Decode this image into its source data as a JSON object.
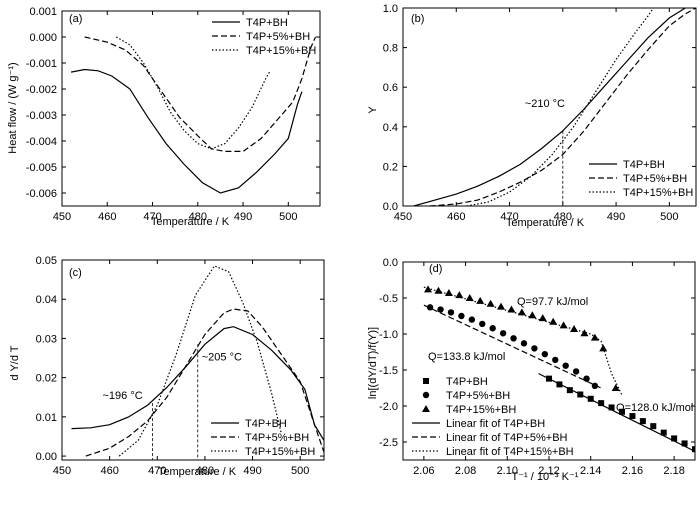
{
  "chart_data": [
    {
      "panel": "(a)",
      "type": "line",
      "xlabel": "Temperature / K",
      "ylabel": "Heat flow / (W g⁻¹)",
      "xlim": [
        450,
        507
      ],
      "ylim": [
        -0.0065,
        0.001
      ],
      "xticks": [
        450,
        460,
        470,
        480,
        490,
        500
      ],
      "yticks": [
        0.001,
        0.0,
        -0.001,
        -0.002,
        -0.003,
        -0.004,
        -0.005,
        -0.006
      ],
      "ytick_labels": [
        "0.001",
        "0.000",
        "-0.001",
        "-0.002",
        "-0.003",
        "-0.004",
        "-0.005",
        "-0.006"
      ],
      "legend_position": "top-right",
      "series": [
        {
          "name": "T4P+BH",
          "style": "solid",
          "points": [
            [
              452,
              -0.00135
            ],
            [
              455,
              -0.00125
            ],
            [
              458,
              -0.0013
            ],
            [
              461,
              -0.0015
            ],
            [
              465,
              -0.002
            ],
            [
              469,
              -0.0031
            ],
            [
              473,
              -0.0041
            ],
            [
              477,
              -0.0049
            ],
            [
              481,
              -0.0056
            ],
            [
              485,
              -0.006
            ],
            [
              489,
              -0.0058
            ],
            [
              493,
              -0.0052
            ],
            [
              497,
              -0.0045
            ],
            [
              500,
              -0.0039
            ],
            [
              502,
              -0.0026
            ],
            [
              503,
              -0.0021
            ]
          ]
        },
        {
          "name": "T4P+5%+BH",
          "style": "dashed",
          "points": [
            [
              455,
              0.0
            ],
            [
              460,
              -0.0002
            ],
            [
              464,
              -0.0005
            ],
            [
              468,
              -0.0011
            ],
            [
              472,
              -0.0021
            ],
            [
              476,
              -0.0031
            ],
            [
              480,
              -0.0038
            ],
            [
              483,
              -0.0043
            ],
            [
              486,
              -0.0044
            ],
            [
              490,
              -0.0044
            ],
            [
              494,
              -0.0039
            ],
            [
              498,
              -0.0031
            ],
            [
              501,
              -0.0025
            ],
            [
              503,
              -0.0016
            ],
            [
              505,
              -0.0004
            ],
            [
              506,
              0.0
            ]
          ]
        },
        {
          "name": "T4P+15%+BH",
          "style": "dotted",
          "points": [
            [
              462,
              0.0
            ],
            [
              465,
              -0.0003
            ],
            [
              468,
              -0.001
            ],
            [
              471,
              -0.0019
            ],
            [
              474,
              -0.0029
            ],
            [
              477,
              -0.0036
            ],
            [
              480,
              -0.0041
            ],
            [
              483,
              -0.0043
            ],
            [
              486,
              -0.0041
            ],
            [
              489,
              -0.0035
            ],
            [
              492,
              -0.0027
            ],
            [
              495,
              -0.0016
            ],
            [
              496,
              -0.0013
            ]
          ]
        }
      ]
    },
    {
      "panel": "(b)",
      "type": "line",
      "xlabel": "Temperature / K",
      "ylabel": "Y",
      "xlim": [
        450,
        505
      ],
      "ylim": [
        0,
        1.0
      ],
      "xticks": [
        450,
        460,
        470,
        480,
        490,
        500
      ],
      "yticks": [
        0.0,
        0.2,
        0.4,
        0.6,
        0.8,
        1.0
      ],
      "ytick_labels": [
        "0.0",
        "0.2",
        "0.4",
        "0.6",
        "0.8",
        "1.0"
      ],
      "legend_position": "bottom-right",
      "annotations": [
        {
          "text": "~210 °C",
          "x": 480
        }
      ],
      "series": [
        {
          "name": "T4P+BH",
          "style": "solid",
          "points": [
            [
              452,
              0.0
            ],
            [
              456,
              0.03
            ],
            [
              460,
              0.06
            ],
            [
              464,
              0.1
            ],
            [
              468,
              0.15
            ],
            [
              472,
              0.21
            ],
            [
              476,
              0.29
            ],
            [
              480,
              0.38
            ],
            [
              484,
              0.49
            ],
            [
              488,
              0.61
            ],
            [
              492,
              0.73
            ],
            [
              496,
              0.85
            ],
            [
              500,
              0.95
            ],
            [
              503,
              1.0
            ]
          ]
        },
        {
          "name": "T4P+5%+BH",
          "style": "dashed",
          "points": [
            [
              455,
              0.0
            ],
            [
              460,
              0.01
            ],
            [
              464,
              0.03
            ],
            [
              468,
              0.07
            ],
            [
              472,
              0.12
            ],
            [
              476,
              0.18
            ],
            [
              480,
              0.26
            ],
            [
              484,
              0.38
            ],
            [
              488,
              0.52
            ],
            [
              492,
              0.66
            ],
            [
              496,
              0.79
            ],
            [
              500,
              0.91
            ],
            [
              503,
              0.97
            ],
            [
              505,
              1.0
            ]
          ]
        },
        {
          "name": "T4P+15%+BH",
          "style": "dotted",
          "points": [
            [
              462,
              0.0
            ],
            [
              466,
              0.02
            ],
            [
              470,
              0.07
            ],
            [
              474,
              0.15
            ],
            [
              478,
              0.26
            ],
            [
              482,
              0.4
            ],
            [
              486,
              0.57
            ],
            [
              490,
              0.74
            ],
            [
              494,
              0.89
            ],
            [
              496,
              0.96
            ],
            [
              497,
              1.0
            ]
          ]
        }
      ]
    },
    {
      "panel": "(c)",
      "type": "line",
      "xlabel": "Temperature / K",
      "ylabel": "d Y/d T",
      "xlim": [
        450,
        505
      ],
      "ylim": [
        -0.001,
        0.05
      ],
      "xticks": [
        450,
        460,
        470,
        480,
        490,
        500
      ],
      "yticks": [
        0.0,
        0.01,
        0.02,
        0.03,
        0.04,
        0.05
      ],
      "ytick_labels": [
        "0.00",
        "0.01",
        "0.02",
        "0.03",
        "0.04",
        "0.05"
      ],
      "legend_position": "bottom-right",
      "annotations": [
        {
          "text": "~196 °C",
          "x": 469
        },
        {
          "text": "~205 °C",
          "x": 478.5
        }
      ],
      "series": [
        {
          "name": "T4P+BH",
          "style": "solid",
          "points": [
            [
              452,
              0.007
            ],
            [
              456,
              0.0072
            ],
            [
              460,
              0.008
            ],
            [
              464,
              0.01
            ],
            [
              468,
              0.013
            ],
            [
              472,
              0.0175
            ],
            [
              476,
              0.0228
            ],
            [
              480,
              0.0285
            ],
            [
              484,
              0.0325
            ],
            [
              486,
              0.033
            ],
            [
              490,
              0.031
            ],
            [
              494,
              0.027
            ],
            [
              498,
              0.022
            ],
            [
              501,
              0.017
            ],
            [
              503,
              0.008
            ],
            [
              505,
              0.004
            ]
          ]
        },
        {
          "name": "T4P+5%+BH",
          "style": "dashed",
          "points": [
            [
              455,
              0.0
            ],
            [
              460,
              0.002
            ],
            [
              464,
              0.005
            ],
            [
              468,
              0.009
            ],
            [
              472,
              0.015
            ],
            [
              476,
              0.023
            ],
            [
              480,
              0.031
            ],
            [
              484,
              0.0365
            ],
            [
              486,
              0.0375
            ],
            [
              489,
              0.037
            ],
            [
              492,
              0.033
            ],
            [
              496,
              0.026
            ],
            [
              500,
              0.019
            ],
            [
              503,
              0.008
            ],
            [
              505,
              0.001
            ]
          ]
        },
        {
          "name": "T4P+15%+BH",
          "style": "dotted",
          "points": [
            [
              462,
              0.0
            ],
            [
              466,
              0.004
            ],
            [
              470,
              0.013
            ],
            [
              474,
              0.026
            ],
            [
              478,
              0.041
            ],
            [
              482,
              0.0485
            ],
            [
              485,
              0.047
            ],
            [
              488,
              0.039
            ],
            [
              491,
              0.029
            ],
            [
              494,
              0.016
            ],
            [
              496,
              0.006
            ]
          ]
        }
      ]
    },
    {
      "panel": "(d)",
      "type": "scatter",
      "xlabel": "T⁻¹ / 10⁻³ K⁻¹",
      "ylabel": "ln[(dY/dT)/f(Y)]",
      "xlim": [
        2.05,
        2.19
      ],
      "ylim": [
        -2.75,
        0.0
      ],
      "xticks": [
        2.06,
        2.08,
        2.1,
        2.12,
        2.14,
        2.16,
        2.18
      ],
      "xtick_labels": [
        "2.06",
        "2.08",
        "2.10",
        "2.12",
        "2.14",
        "2.16",
        "2.18"
      ],
      "yticks": [
        0.0,
        -0.5,
        -1.0,
        -1.5,
        -2.0,
        -2.5
      ],
      "ytick_labels": [
        "0.0",
        "-0.5",
        "-1.0",
        "-1.5",
        "-2.0",
        "-2.5"
      ],
      "legend_position": "bottom-left",
      "annotations": [
        {
          "text": "Q=97.7 kJ/mol",
          "x": 2.12
        },
        {
          "text": "Q=133.8 kJ/mol",
          "x": 2.07
        },
        {
          "text": "Q=128.0 kJ/mol",
          "x": 2.16
        }
      ],
      "series": [
        {
          "name": "T4P+BH",
          "marker": "square",
          "points": [
            [
              2.12,
              -1.62
            ],
            [
              2.125,
              -1.7
            ],
            [
              2.13,
              -1.78
            ],
            [
              2.135,
              -1.84
            ],
            [
              2.14,
              -1.9
            ],
            [
              2.145,
              -1.96
            ],
            [
              2.15,
              -2.02
            ],
            [
              2.155,
              -2.08
            ],
            [
              2.16,
              -2.14
            ],
            [
              2.165,
              -2.21
            ],
            [
              2.17,
              -2.28
            ],
            [
              2.175,
              -2.37
            ],
            [
              2.18,
              -2.45
            ],
            [
              2.185,
              -2.52
            ],
            [
              2.19,
              -2.6
            ]
          ]
        },
        {
          "name": "T4P+5%+BH",
          "marker": "circle",
          "points": [
            [
              2.063,
              -0.63
            ],
            [
              2.068,
              -0.66
            ],
            [
              2.073,
              -0.7
            ],
            [
              2.078,
              -0.75
            ],
            [
              2.083,
              -0.8
            ],
            [
              2.088,
              -0.86
            ],
            [
              2.093,
              -0.92
            ],
            [
              2.098,
              -0.99
            ],
            [
              2.103,
              -1.06
            ],
            [
              2.108,
              -1.13
            ],
            [
              2.113,
              -1.2
            ],
            [
              2.118,
              -1.28
            ],
            [
              2.123,
              -1.36
            ],
            [
              2.128,
              -1.44
            ],
            [
              2.133,
              -1.52
            ],
            [
              2.138,
              -1.62
            ],
            [
              2.142,
              -1.72
            ]
          ]
        },
        {
          "name": "T4P+15%+BH",
          "marker": "triangle",
          "points": [
            [
              2.062,
              -0.38
            ],
            [
              2.067,
              -0.4
            ],
            [
              2.072,
              -0.43
            ],
            [
              2.077,
              -0.46
            ],
            [
              2.082,
              -0.5
            ],
            [
              2.087,
              -0.54
            ],
            [
              2.092,
              -0.58
            ],
            [
              2.097,
              -0.62
            ],
            [
              2.102,
              -0.66
            ],
            [
              2.107,
              -0.7
            ],
            [
              2.112,
              -0.74
            ],
            [
              2.117,
              -0.78
            ],
            [
              2.122,
              -0.83
            ],
            [
              2.127,
              -0.88
            ],
            [
              2.132,
              -0.93
            ],
            [
              2.137,
              -0.99
            ],
            [
              2.142,
              -1.05
            ],
            [
              2.146,
              -1.2
            ],
            [
              2.152,
              -1.75
            ]
          ]
        },
        {
          "name": "Linear fit of T4P+BH",
          "style": "solid",
          "points": [
            [
              2.115,
              -1.55
            ],
            [
              2.19,
              -2.63
            ]
          ]
        },
        {
          "name": "Linear fit of T4P+5%+BH",
          "style": "dashed",
          "points": [
            [
              2.06,
              -0.6
            ],
            [
              2.145,
              -1.75
            ]
          ]
        },
        {
          "name": "Linear fit of T4P+15%+BH",
          "style": "dotted",
          "points": [
            [
              2.06,
              -0.35
            ],
            [
              2.14,
              -1.0
            ],
            [
              2.145,
              -1.1
            ],
            [
              2.15,
              -1.55
            ],
            [
              2.155,
              -1.85
            ]
          ]
        }
      ]
    }
  ]
}
